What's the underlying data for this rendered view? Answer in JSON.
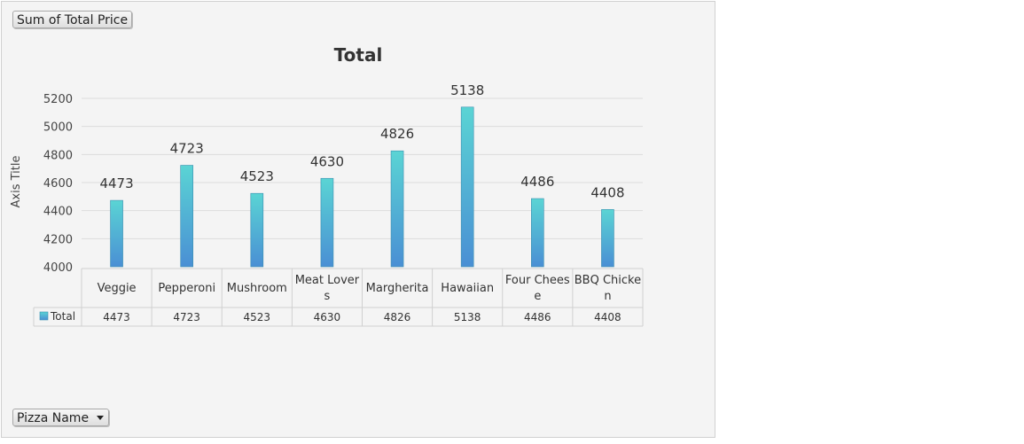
{
  "field_buttons": {
    "value_field": "Sum of Total Price",
    "axis_field": "Pizza Name"
  },
  "chart_data": {
    "type": "bar",
    "title": "Total",
    "ylabel": "Axis Title",
    "xlabel": "",
    "categories": [
      "Veggie",
      "Pepperoni",
      "Mushroom",
      "Meat Lovers",
      "Margherita",
      "Hawaiian",
      "Four Cheese",
      "BBQ Chicken"
    ],
    "category_lines": [
      [
        "Veggie"
      ],
      [
        "Pepperoni"
      ],
      [
        "Mushroom"
      ],
      [
        "Meat Lover",
        "s"
      ],
      [
        "Margherita"
      ],
      [
        "Hawaiian"
      ],
      [
        "Four Chees",
        "e"
      ],
      [
        "BBQ Chicke",
        "n"
      ]
    ],
    "series": [
      {
        "name": "Total",
        "values": [
          4473,
          4723,
          4523,
          4630,
          4826,
          5138,
          4486,
          4408
        ]
      }
    ],
    "ylim": [
      4000,
      5200
    ],
    "yticks": [
      4000,
      4200,
      4400,
      4600,
      4800,
      5000,
      5200
    ],
    "grid": true,
    "data_labels": true,
    "data_table": true,
    "colors": {
      "bar_top": "#5ad4d4",
      "bar_bottom": "#4a8fd4",
      "bar_stroke": "#3a8fb0"
    }
  }
}
